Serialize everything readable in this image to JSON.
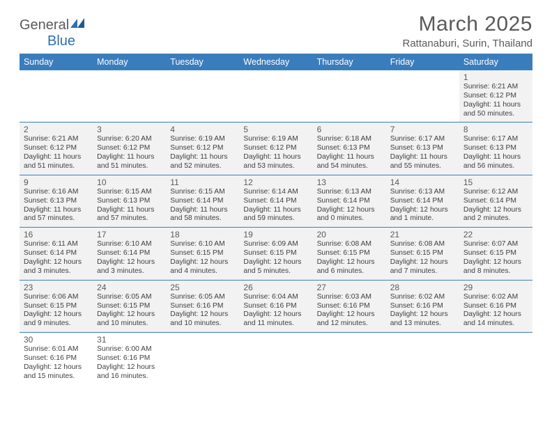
{
  "branding": {
    "logo_text_1": "General",
    "logo_text_2": "Blue",
    "logo_color_gray": "#5a5a5a",
    "logo_color_blue": "#2f6fb0"
  },
  "title": "March 2025",
  "location": "Rattanaburi, Surin, Thailand",
  "colors": {
    "header_bg": "#3a7dbd",
    "header_text": "#ffffff",
    "cell_bg": "#f2f2f2",
    "row_border": "#3a7dbd",
    "text": "#404040"
  },
  "weekdays": [
    "Sunday",
    "Monday",
    "Tuesday",
    "Wednesday",
    "Thursday",
    "Friday",
    "Saturday"
  ],
  "weeks": [
    [
      null,
      null,
      null,
      null,
      null,
      null,
      {
        "d": "1",
        "sr": "6:21 AM",
        "ss": "6:12 PM",
        "dl": "11 hours and 50 minutes."
      }
    ],
    [
      {
        "d": "2",
        "sr": "6:21 AM",
        "ss": "6:12 PM",
        "dl": "11 hours and 51 minutes."
      },
      {
        "d": "3",
        "sr": "6:20 AM",
        "ss": "6:12 PM",
        "dl": "11 hours and 51 minutes."
      },
      {
        "d": "4",
        "sr": "6:19 AM",
        "ss": "6:12 PM",
        "dl": "11 hours and 52 minutes."
      },
      {
        "d": "5",
        "sr": "6:19 AM",
        "ss": "6:12 PM",
        "dl": "11 hours and 53 minutes."
      },
      {
        "d": "6",
        "sr": "6:18 AM",
        "ss": "6:13 PM",
        "dl": "11 hours and 54 minutes."
      },
      {
        "d": "7",
        "sr": "6:17 AM",
        "ss": "6:13 PM",
        "dl": "11 hours and 55 minutes."
      },
      {
        "d": "8",
        "sr": "6:17 AM",
        "ss": "6:13 PM",
        "dl": "11 hours and 56 minutes."
      }
    ],
    [
      {
        "d": "9",
        "sr": "6:16 AM",
        "ss": "6:13 PM",
        "dl": "11 hours and 57 minutes."
      },
      {
        "d": "10",
        "sr": "6:15 AM",
        "ss": "6:13 PM",
        "dl": "11 hours and 57 minutes."
      },
      {
        "d": "11",
        "sr": "6:15 AM",
        "ss": "6:14 PM",
        "dl": "11 hours and 58 minutes."
      },
      {
        "d": "12",
        "sr": "6:14 AM",
        "ss": "6:14 PM",
        "dl": "11 hours and 59 minutes."
      },
      {
        "d": "13",
        "sr": "6:13 AM",
        "ss": "6:14 PM",
        "dl": "12 hours and 0 minutes."
      },
      {
        "d": "14",
        "sr": "6:13 AM",
        "ss": "6:14 PM",
        "dl": "12 hours and 1 minute."
      },
      {
        "d": "15",
        "sr": "6:12 AM",
        "ss": "6:14 PM",
        "dl": "12 hours and 2 minutes."
      }
    ],
    [
      {
        "d": "16",
        "sr": "6:11 AM",
        "ss": "6:14 PM",
        "dl": "12 hours and 3 minutes."
      },
      {
        "d": "17",
        "sr": "6:10 AM",
        "ss": "6:14 PM",
        "dl": "12 hours and 3 minutes."
      },
      {
        "d": "18",
        "sr": "6:10 AM",
        "ss": "6:15 PM",
        "dl": "12 hours and 4 minutes."
      },
      {
        "d": "19",
        "sr": "6:09 AM",
        "ss": "6:15 PM",
        "dl": "12 hours and 5 minutes."
      },
      {
        "d": "20",
        "sr": "6:08 AM",
        "ss": "6:15 PM",
        "dl": "12 hours and 6 minutes."
      },
      {
        "d": "21",
        "sr": "6:08 AM",
        "ss": "6:15 PM",
        "dl": "12 hours and 7 minutes."
      },
      {
        "d": "22",
        "sr": "6:07 AM",
        "ss": "6:15 PM",
        "dl": "12 hours and 8 minutes."
      }
    ],
    [
      {
        "d": "23",
        "sr": "6:06 AM",
        "ss": "6:15 PM",
        "dl": "12 hours and 9 minutes."
      },
      {
        "d": "24",
        "sr": "6:05 AM",
        "ss": "6:15 PM",
        "dl": "12 hours and 10 minutes."
      },
      {
        "d": "25",
        "sr": "6:05 AM",
        "ss": "6:16 PM",
        "dl": "12 hours and 10 minutes."
      },
      {
        "d": "26",
        "sr": "6:04 AM",
        "ss": "6:16 PM",
        "dl": "12 hours and 11 minutes."
      },
      {
        "d": "27",
        "sr": "6:03 AM",
        "ss": "6:16 PM",
        "dl": "12 hours and 12 minutes."
      },
      {
        "d": "28",
        "sr": "6:02 AM",
        "ss": "6:16 PM",
        "dl": "12 hours and 13 minutes."
      },
      {
        "d": "29",
        "sr": "6:02 AM",
        "ss": "6:16 PM",
        "dl": "12 hours and 14 minutes."
      }
    ],
    [
      {
        "d": "30",
        "sr": "6:01 AM",
        "ss": "6:16 PM",
        "dl": "12 hours and 15 minutes."
      },
      {
        "d": "31",
        "sr": "6:00 AM",
        "ss": "6:16 PM",
        "dl": "12 hours and 16 minutes."
      },
      null,
      null,
      null,
      null,
      null
    ]
  ],
  "labels": {
    "sunrise": "Sunrise:",
    "sunset": "Sunset:",
    "daylight": "Daylight:"
  }
}
